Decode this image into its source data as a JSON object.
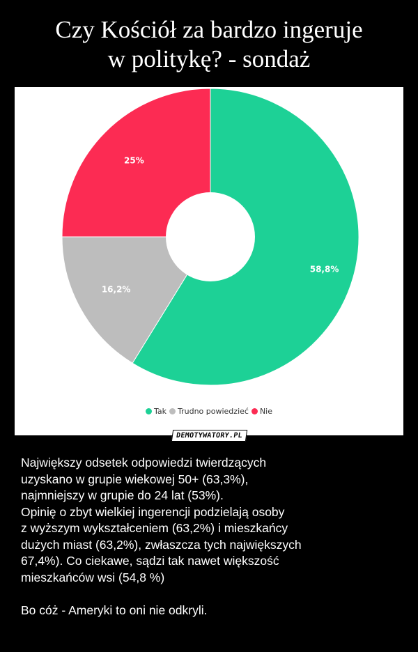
{
  "title": {
    "line1": "Czy Kościół za bardzo ingeruje",
    "line2": "w politykę? - sondaż"
  },
  "chart_data": {
    "type": "pie",
    "style": "donut",
    "categories": [
      "Tak",
      "Trudno powiedzieć",
      "Nie"
    ],
    "values": [
      58.8,
      16.2,
      25
    ],
    "labels": [
      "58,8%",
      "16,2%",
      "25%"
    ],
    "colors": [
      "#1dd196",
      "#bdbdbd",
      "#fc2b53"
    ],
    "legend_position": "bottom-center"
  },
  "legend": [
    {
      "label": "Tak",
      "color": "#1dd196"
    },
    {
      "label": "Trudno powiedzieć",
      "color": "#bdbdbd"
    },
    {
      "label": "Nie",
      "color": "#fc2b53"
    }
  ],
  "watermark": "DEMOTYWATORY.PL",
  "description": {
    "lines": [
      "Największy odsetek odpowiedzi twierdzących",
      "uzyskano w grupie wiekowej 50+ (63,3%),",
      "najmniejszy w grupie do 24 lat (53%).",
      "Opinię o zbyt wielkiej ingerencji podzielają osoby",
      "z wyższym wykształceniem (63,2%) i mieszkańcy",
      "dużych miast (63,2%), zwłaszcza tych największych",
      "67,4%). Co ciekawe, sądzi tak nawet większość",
      "mieszkańców wsi (54,8 %)"
    ],
    "closing": "Bo cóż - Ameryki to oni nie odkryli."
  }
}
